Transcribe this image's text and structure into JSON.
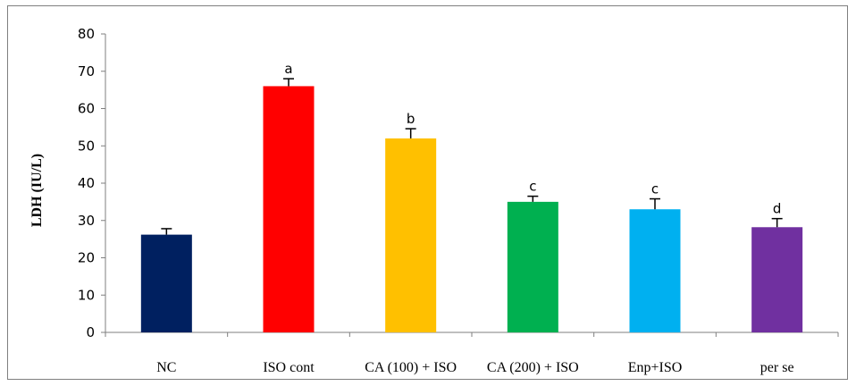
{
  "chart_data": {
    "type": "bar",
    "title": "",
    "xlabel": "",
    "ylabel": "LDH (IU/L)",
    "ylim": [
      0,
      80
    ],
    "yticks": [
      0,
      10,
      20,
      30,
      40,
      50,
      60,
      70,
      80
    ],
    "grid": false,
    "legend": "none",
    "categories": [
      "NC",
      "ISO cont",
      "CA (100) + ISO",
      "CA (200) + ISO",
      "Enp+ISO",
      "per se"
    ],
    "values": [
      26.2,
      66.0,
      52.0,
      35.0,
      33.0,
      28.2
    ],
    "errors": [
      1.6,
      2.0,
      2.6,
      1.5,
      2.8,
      2.3
    ],
    "significance_labels": [
      "",
      "a",
      "b",
      "c",
      "c",
      "d"
    ],
    "colors": [
      "#002060",
      "#ff0000",
      "#ffc000",
      "#00b050",
      "#00b0f0",
      "#7030a0"
    ]
  }
}
